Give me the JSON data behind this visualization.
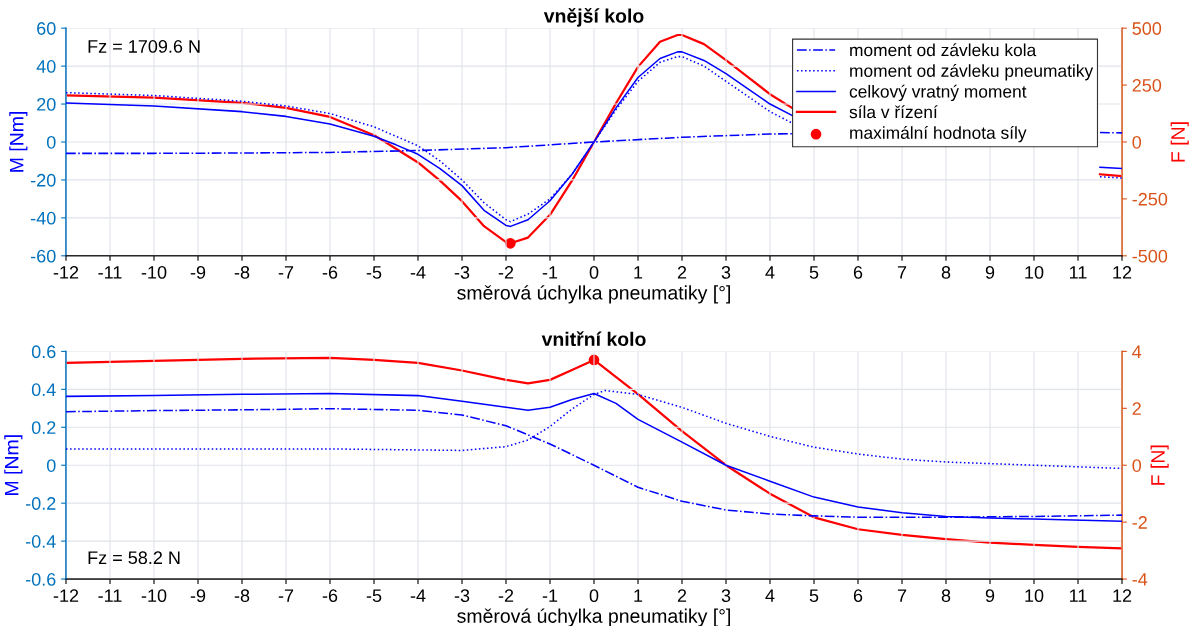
{
  "chart_data": [
    {
      "type": "line",
      "title": "vnější kolo",
      "xlabel": "směrová úchylka pneumatiky [°]",
      "ylabel": "M [Nm]",
      "y2label": "F [N]",
      "annotations": [
        "Fz = 1709.6 N"
      ],
      "xlim": [
        -12,
        12
      ],
      "xticks": [
        -12,
        -11,
        -10,
        -9,
        -8,
        -7,
        -6,
        -5,
        -4,
        -3,
        -2,
        -1,
        0,
        1,
        2,
        3,
        4,
        5,
        6,
        7,
        8,
        9,
        10,
        11,
        12
      ],
      "ylim": [
        -60,
        60
      ],
      "yticks": [
        -60,
        -40,
        -20,
        0,
        20,
        40,
        60
      ],
      "y2lim": [
        -500,
        500
      ],
      "y2ticks": [
        -500,
        -250,
        0,
        250,
        500
      ],
      "grid": true,
      "legend": "top right",
      "series": [
        {
          "name": "moment od závleku kola",
          "color": "#0000ff",
          "line_style": "dashdot",
          "x": [
            -12,
            -10,
            -8,
            -6,
            -4,
            -2,
            0,
            2,
            4,
            4.5,
            8,
            11.5,
            12
          ],
          "values": [
            -6,
            -6,
            -5.8,
            -5.5,
            -4.5,
            -3,
            0,
            2.5,
            4.2,
            4.4,
            null,
            5,
            4.8
          ]
        },
        {
          "name": "moment od závleku pneumatiky",
          "color": "#0000ff",
          "line_style": "dotted",
          "x": [
            -12,
            -10,
            -8,
            -7,
            -6,
            -5,
            -4.5,
            -4,
            -3.5,
            -3,
            -2.5,
            -2,
            -1.9,
            -1.5,
            -1,
            -0.5,
            0,
            0.5,
            1,
            1.5,
            1.9,
            2,
            2.5,
            3,
            3.5,
            4,
            4.5,
            8,
            11.5,
            12
          ],
          "values": [
            26,
            24.5,
            21.5,
            19,
            15,
            8,
            3,
            -2,
            -10,
            -20,
            -32,
            -41,
            -42,
            -38,
            -30,
            -17,
            0,
            17,
            32,
            42,
            45,
            45,
            40,
            32,
            24,
            16,
            10,
            null,
            -18.3,
            -19
          ]
        },
        {
          "name": "celkový vratný moment",
          "color": "#0000ff",
          "line_style": "solid",
          "x": [
            -12,
            -10,
            -8,
            -7,
            -6,
            -5,
            -4.5,
            -4,
            -3.5,
            -3,
            -2.5,
            -2,
            -1.9,
            -1.5,
            -1,
            -0.5,
            0,
            0.5,
            1,
            1.5,
            1.9,
            2,
            2.5,
            3,
            3.5,
            4,
            4.5,
            8,
            11.5,
            12
          ],
          "values": [
            20.5,
            19,
            16,
            13.5,
            9.5,
            3,
            -1.5,
            -6.5,
            -14,
            -23,
            -36,
            -44,
            -44.5,
            -41,
            -31,
            -17,
            0,
            18,
            34,
            44,
            47.5,
            47.5,
            43,
            36,
            28,
            20,
            14,
            null,
            -13.3,
            -14
          ]
        },
        {
          "name": "síla v řízení",
          "color": "#ff0000",
          "line_style": "solid",
          "axis": "y2",
          "x": [
            -12,
            -10,
            -8,
            -7,
            -6,
            -5,
            -4.5,
            -4,
            -3.5,
            -3,
            -2.5,
            -2,
            -1.9,
            -1.5,
            -1,
            -0.5,
            0,
            0.5,
            1,
            1.5,
            1.9,
            2,
            2.5,
            3,
            3.5,
            4,
            4.5,
            8,
            11.5,
            12
          ],
          "values": [
            205,
            195,
            172,
            150,
            110,
            30,
            -30,
            -90,
            -170,
            -260,
            -370,
            -440,
            -445,
            -420,
            -320,
            -170,
            0,
            170,
            330,
            440,
            470,
            470,
            430,
            360,
            285,
            210,
            150,
            null,
            -142,
            -150
          ]
        },
        {
          "name": "maximální hodnota síly",
          "type": "scatter",
          "marker": "circle",
          "color": "#ff0000",
          "axis": "y2",
          "x": [
            -1.9
          ],
          "values": [
            -445
          ]
        }
      ]
    },
    {
      "type": "line",
      "title": "vnitřní kolo",
      "xlabel": "směrová úchylka pneumatiky [°]",
      "ylabel": "M [Nm]",
      "y2label": "F [N]",
      "annotations": [
        "Fz = 58.2 N"
      ],
      "xlim": [
        -12,
        12
      ],
      "xticks": [
        -12,
        -11,
        -10,
        -9,
        -8,
        -7,
        -6,
        -5,
        -4,
        -3,
        -2,
        -1,
        0,
        1,
        2,
        3,
        4,
        5,
        6,
        7,
        8,
        9,
        10,
        11,
        12
      ],
      "ylim": [
        -0.6,
        0.6
      ],
      "yticks": [
        -0.6,
        -0.4,
        -0.2,
        0,
        0.2,
        0.4,
        0.6
      ],
      "y2lim": [
        -4,
        4
      ],
      "y2ticks": [
        -4,
        -2,
        0,
        2,
        4
      ],
      "grid": true,
      "series": [
        {
          "color": "#0000ff",
          "line_style": "dashdot",
          "x": [
            -12,
            -10,
            -8,
            -6,
            -4,
            -3,
            -2,
            -1,
            0,
            1,
            2,
            3,
            4,
            5,
            6,
            8,
            10,
            12
          ],
          "values": [
            0.282,
            0.288,
            0.292,
            0.298,
            0.29,
            0.265,
            0.208,
            0.112,
            0,
            -0.116,
            -0.19,
            -0.236,
            -0.257,
            -0.267,
            -0.274,
            -0.274,
            -0.27,
            -0.263
          ]
        },
        {
          "color": "#0000ff",
          "line_style": "dotted",
          "x": [
            -12,
            -9,
            -6,
            -3,
            -2,
            -1.5,
            -1,
            -0.5,
            0,
            0.25,
            1,
            2,
            3,
            4,
            5,
            6,
            7,
            8,
            10,
            12
          ],
          "values": [
            0.086,
            0.086,
            0.086,
            0.078,
            0.098,
            0.133,
            0.204,
            0.296,
            0.373,
            0.394,
            0.373,
            0.305,
            0.221,
            0.152,
            0.095,
            0.059,
            0.032,
            0.017,
            0,
            -0.017
          ]
        },
        {
          "color": "#0000ff",
          "line_style": "solid",
          "x": [
            -12,
            -10,
            -8,
            -6,
            -4,
            -3,
            -2,
            -1.5,
            -1,
            -0.5,
            0,
            0.5,
            1,
            2,
            3,
            4,
            5,
            6,
            7,
            8,
            9,
            10,
            12
          ],
          "values": [
            0.363,
            0.368,
            0.374,
            0.378,
            0.367,
            0.337,
            0.306,
            0.29,
            0.306,
            0.347,
            0.378,
            0.326,
            0.242,
            0.122,
            0,
            -0.084,
            -0.168,
            -0.22,
            -0.25,
            -0.27,
            -0.278,
            -0.284,
            -0.295
          ]
        },
        {
          "color": "#ff0000",
          "line_style": "solid",
          "axis": "y2",
          "x": [
            -12,
            -10,
            -8,
            -6,
            -5,
            -4,
            -3,
            -2,
            -1.5,
            -1,
            -0.5,
            0,
            1,
            2,
            3,
            4,
            5,
            6,
            7,
            8,
            9,
            10,
            11,
            12
          ],
          "values": [
            3.6,
            3.67,
            3.74,
            3.77,
            3.7,
            3.6,
            3.33,
            3.0,
            2.88,
            3.0,
            3.35,
            3.7,
            2.5,
            1.2,
            0,
            -1.0,
            -1.83,
            -2.25,
            -2.45,
            -2.6,
            -2.72,
            -2.8,
            -2.87,
            -2.92
          ]
        },
        {
          "type": "scatter",
          "marker": "circle",
          "color": "#ff0000",
          "axis": "y2",
          "x": [
            0
          ],
          "values": [
            3.7
          ]
        }
      ]
    }
  ]
}
